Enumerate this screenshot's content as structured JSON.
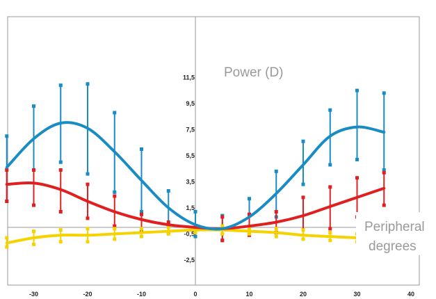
{
  "chart_data": {
    "type": "line",
    "title": "",
    "xlabel": "Peripheral degrees",
    "ylabel": "Power (D)",
    "xlim": [
      -35,
      40
    ],
    "ylim": [
      -3.3,
      11.5
    ],
    "grid": false,
    "x_ticks": [
      -30,
      -20,
      -10,
      0,
      10,
      20,
      30,
      40
    ],
    "y_ticks": [
      -2.5,
      -0.5,
      1.5,
      3.5,
      5.5,
      7.5,
      9.5,
      11.5
    ],
    "x_tick_labels": [
      "-30",
      "-20",
      "-10",
      "0",
      "10",
      "20",
      "30",
      "40"
    ],
    "y_tick_labels": [
      "-2,5",
      "-0,5",
      "1,5",
      "3,5",
      "5,5",
      "7,5",
      "9,5",
      "11,5"
    ],
    "annotations": [
      "Power (D)",
      "Peripheral degrees"
    ],
    "series": [
      {
        "color": "#1a8cc4",
        "points": [
          {
            "x": -35,
            "y": 4.6,
            "lo": 2.0,
            "hi": 7.0
          },
          {
            "x": -30,
            "y": 6.8,
            "lo": 4.4,
            "hi": 9.3
          },
          {
            "x": -25,
            "y": 8.0,
            "lo": 5.0,
            "hi": 10.9
          },
          {
            "x": -20,
            "y": 7.6,
            "lo": 4.1,
            "hi": 11.0
          },
          {
            "x": -15,
            "y": 5.8,
            "lo": 2.7,
            "hi": 8.8
          },
          {
            "x": -10,
            "y": 3.6,
            "lo": 1.2,
            "hi": 6.0
          },
          {
            "x": -5,
            "y": 1.5,
            "lo": 0.2,
            "hi": 2.8
          },
          {
            "x": 0,
            "y": 0.2,
            "lo": -0.7,
            "hi": 1.2
          },
          {
            "x": 5,
            "y": -0.1,
            "lo": -1.0,
            "hi": 0.9
          },
          {
            "x": 10,
            "y": 0.8,
            "lo": -0.4,
            "hi": 2.2
          },
          {
            "x": 15,
            "y": 2.6,
            "lo": 0.8,
            "hi": 4.3
          },
          {
            "x": 20,
            "y": 4.8,
            "lo": 3.3,
            "hi": 6.6
          },
          {
            "x": 25,
            "y": 7.0,
            "lo": 4.8,
            "hi": 9.0
          },
          {
            "x": 30,
            "y": 7.7,
            "lo": 5.2,
            "hi": 10.5
          },
          {
            "x": 35,
            "y": 7.3,
            "lo": 4.4,
            "hi": 10.3
          }
        ]
      },
      {
        "color": "#e02020",
        "points": [
          {
            "x": -35,
            "y": 3.3,
            "lo": 2.0,
            "hi": 4.4
          },
          {
            "x": -30,
            "y": 3.4,
            "lo": 1.7,
            "hi": 4.4
          },
          {
            "x": -25,
            "y": 2.9,
            "lo": 1.2,
            "hi": 4.4
          },
          {
            "x": -20,
            "y": 2.0,
            "lo": 0.7,
            "hi": 3.3
          },
          {
            "x": -15,
            "y": 1.2,
            "lo": 0.1,
            "hi": 2.4
          },
          {
            "x": -10,
            "y": 0.6,
            "lo": -0.2,
            "hi": 1.0
          },
          {
            "x": -5,
            "y": 0.2,
            "lo": -0.4,
            "hi": 0.4
          },
          {
            "x": 0,
            "y": 0.0,
            "lo": -0.1,
            "hi": 0.1
          },
          {
            "x": 5,
            "y": -0.1,
            "lo": -1.0,
            "hi": 0.8
          },
          {
            "x": 10,
            "y": 0.1,
            "lo": -0.6,
            "hi": 1.0
          },
          {
            "x": 15,
            "y": 0.4,
            "lo": -0.4,
            "hi": 1.2
          },
          {
            "x": 20,
            "y": 0.9,
            "lo": -0.2,
            "hi": 2.3
          },
          {
            "x": 25,
            "y": 1.6,
            "lo": -0.1,
            "hi": 3.1
          },
          {
            "x": 30,
            "y": 2.3,
            "lo": 0.8,
            "hi": 3.8
          },
          {
            "x": 35,
            "y": 3.0,
            "lo": 1.7,
            "hi": 4.2
          }
        ]
      },
      {
        "color": "#f5d300",
        "points": [
          {
            "x": -35,
            "y": -1.2,
            "lo": -1.5,
            "hi": -0.8
          },
          {
            "x": -30,
            "y": -0.8,
            "lo": -1.3,
            "hi": -0.3
          },
          {
            "x": -25,
            "y": -0.6,
            "lo": -1.1,
            "hi": -0.2
          },
          {
            "x": -20,
            "y": -0.6,
            "lo": -1.1,
            "hi": -0.1
          },
          {
            "x": -15,
            "y": -0.5,
            "lo": -0.9,
            "hi": -0.1
          },
          {
            "x": -10,
            "y": -0.4,
            "lo": -0.7,
            "hi": -0.1
          },
          {
            "x": -5,
            "y": -0.3,
            "lo": -0.5,
            "hi": 0.0
          },
          {
            "x": 0,
            "y": -0.2,
            "lo": -0.4,
            "hi": 0.1
          },
          {
            "x": 5,
            "y": -0.2,
            "lo": -0.5,
            "hi": 0.1
          },
          {
            "x": 10,
            "y": -0.3,
            "lo": -0.5,
            "hi": -0.1
          },
          {
            "x": 15,
            "y": -0.4,
            "lo": -0.7,
            "hi": -0.1
          },
          {
            "x": 20,
            "y": -0.6,
            "lo": -0.9,
            "hi": -0.2
          },
          {
            "x": 25,
            "y": -0.7,
            "lo": -1.0,
            "hi": -0.4
          },
          {
            "x": 30,
            "y": -0.8,
            "lo": -1.1,
            "hi": -0.5
          }
        ]
      }
    ]
  }
}
